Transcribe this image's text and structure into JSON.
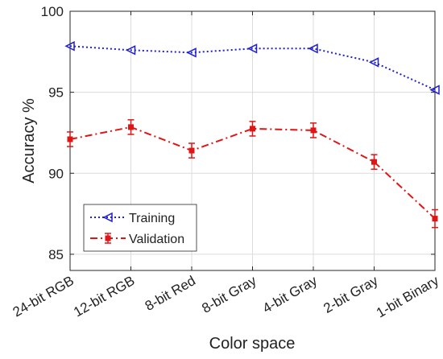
{
  "chart_data": {
    "type": "line",
    "title": "",
    "xlabel": "Color space",
    "ylabel": "Accuracy %",
    "categories": [
      "24-bit RGB",
      "12-bit RGB",
      "8-bit Red",
      "8-bit Gray",
      "4-bit Gray",
      "2-bit Gray",
      "1-bit Binary"
    ],
    "ylim": [
      84,
      100
    ],
    "yticks": [
      85,
      90,
      95,
      100
    ],
    "grid": true,
    "legend_position": "lower-left",
    "series": [
      {
        "name": "Training",
        "values": [
          97.85,
          97.6,
          97.45,
          97.7,
          97.7,
          96.85,
          95.15
        ],
        "color": "#1f1fd6",
        "line_style": "dotted",
        "marker": "left-triangle"
      },
      {
        "name": "Validation",
        "values": [
          92.1,
          92.85,
          91.4,
          92.75,
          92.65,
          90.7,
          87.2
        ],
        "errors": [
          0.45,
          0.45,
          0.45,
          0.45,
          0.45,
          0.45,
          0.55
        ],
        "color": "#e01515",
        "line_style": "dash-dot",
        "marker": "square"
      }
    ]
  }
}
